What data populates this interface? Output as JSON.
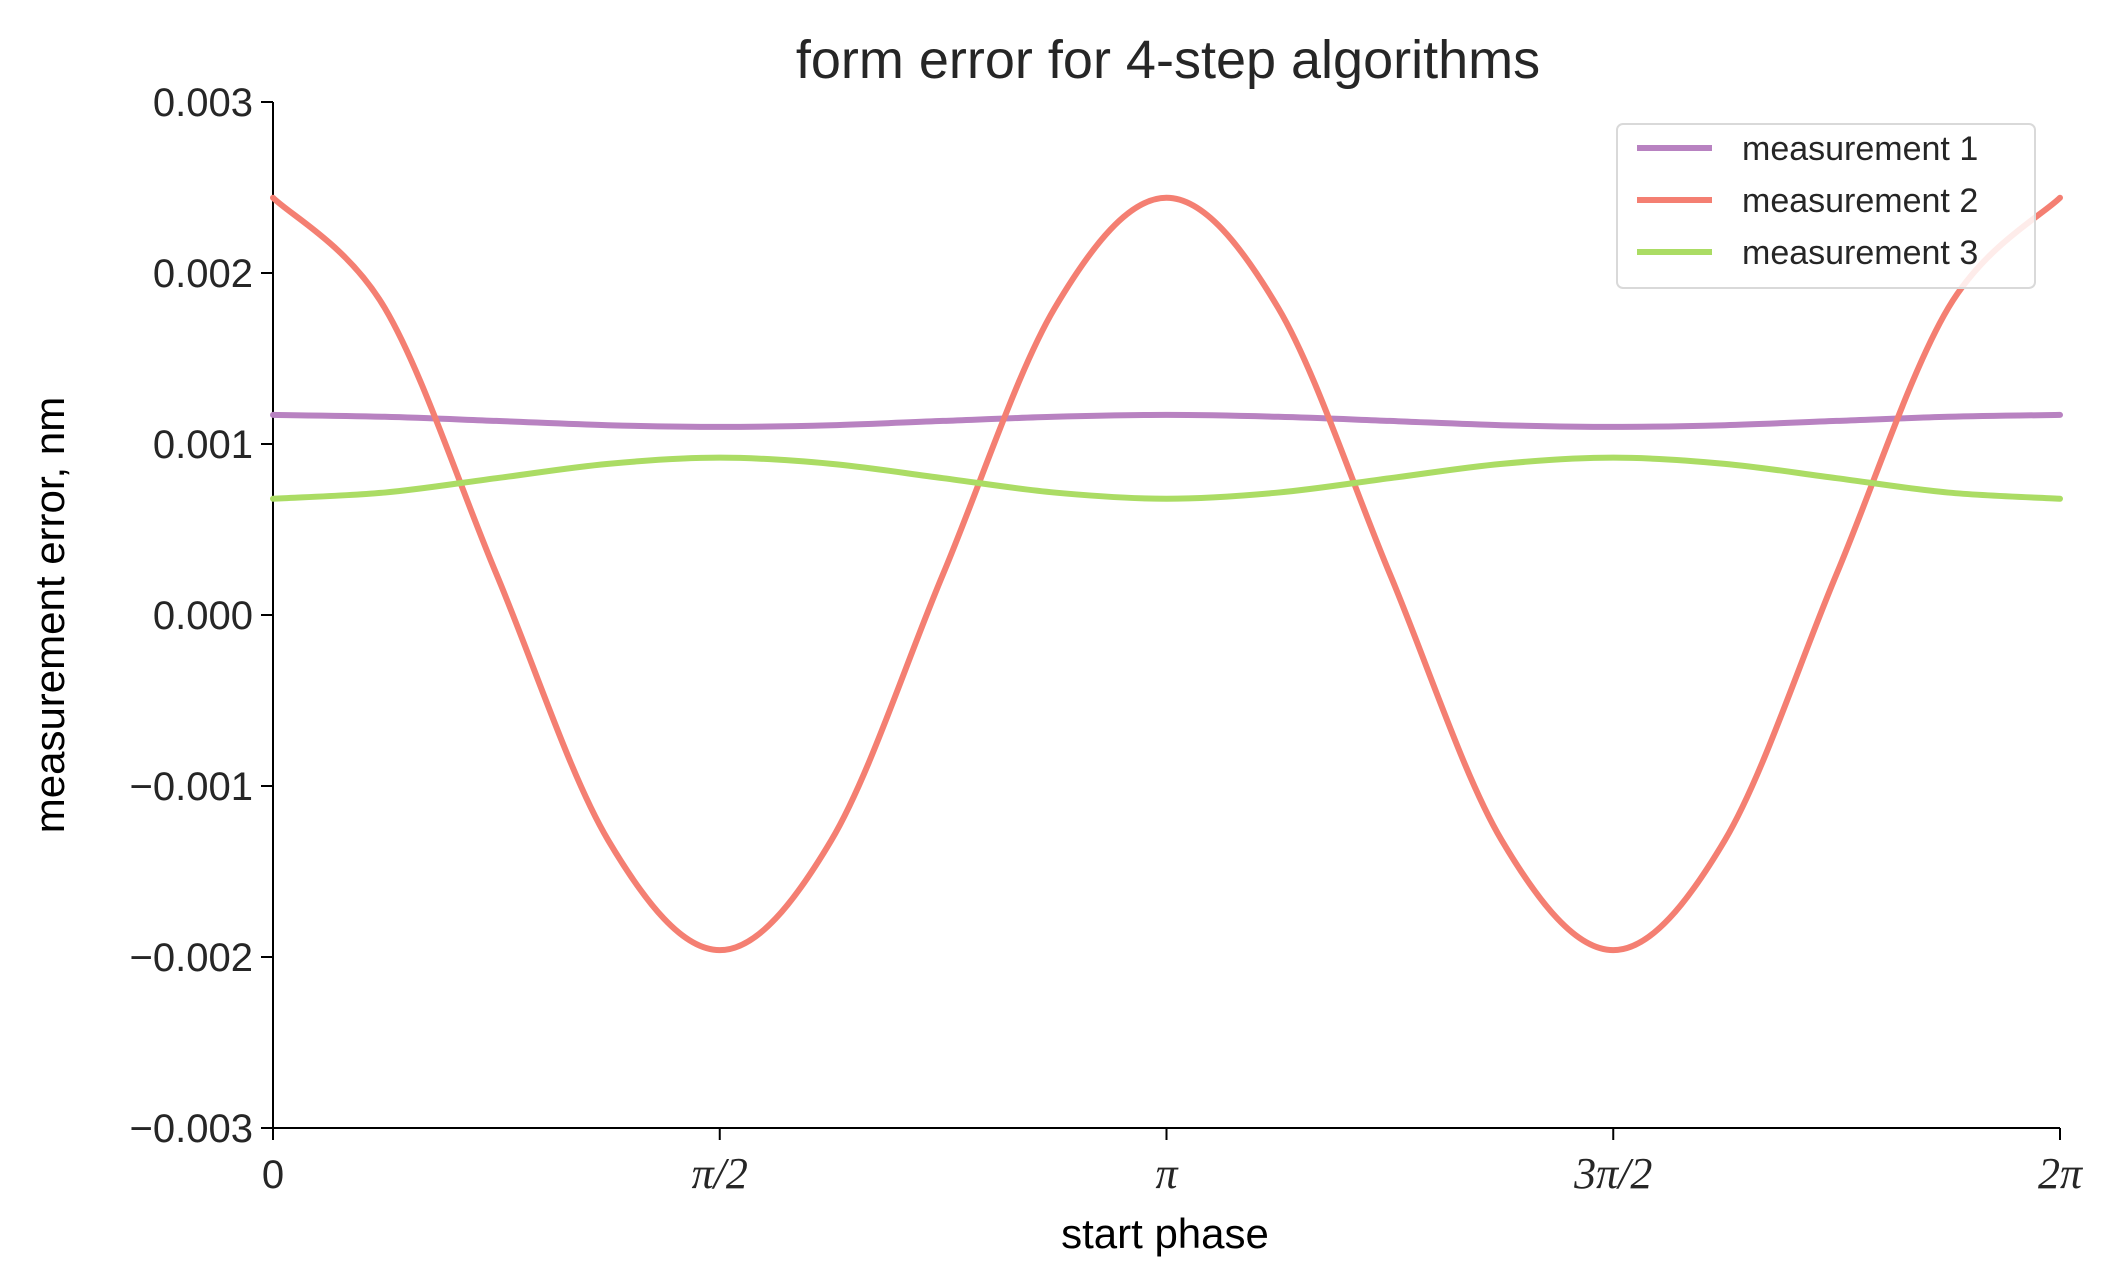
{
  "chart_data": {
    "type": "line",
    "title": "form error for 4-step algorithms",
    "xlabel": "start phase",
    "ylabel": "measurement error, nm",
    "xlim": [
      0,
      6.283185307
    ],
    "ylim": [
      -0.003,
      0.003
    ],
    "x_ticks": [
      {
        "value": 0,
        "label": "0"
      },
      {
        "value": 1.570796327,
        "label": "π/2"
      },
      {
        "value": 3.141592654,
        "label": "π"
      },
      {
        "value": 4.71238898,
        "label": "3π/2"
      },
      {
        "value": 6.283185307,
        "label": "2π"
      }
    ],
    "y_ticks": [
      {
        "value": 0.003,
        "label": "0.003"
      },
      {
        "value": 0.002,
        "label": "0.002"
      },
      {
        "value": 0.001,
        "label": "0.001"
      },
      {
        "value": 0.0,
        "label": "0.000"
      },
      {
        "value": -0.001,
        "label": "−0.001"
      },
      {
        "value": -0.002,
        "label": "−0.002"
      },
      {
        "value": -0.003,
        "label": "−0.003"
      }
    ],
    "grid": false,
    "legend_position": "top-right",
    "x": [
      0,
      0.3926991,
      0.7853982,
      1.1780972,
      1.5707963,
      1.9634954,
      2.3561945,
      2.7488936,
      3.1415927,
      3.5342917,
      3.9269908,
      4.3196899,
      4.712389,
      5.1050881,
      5.4977871,
      5.8904862,
      6.2831853
    ],
    "series": [
      {
        "name": "measurement 1",
        "color": "#b882c1",
        "values": [
          0.00117,
          0.001159,
          0.001135,
          0.00111,
          0.0011,
          0.00111,
          0.001135,
          0.001159,
          0.00117,
          0.001159,
          0.001135,
          0.00111,
          0.0011,
          0.00111,
          0.001135,
          0.001159,
          0.00117
        ]
      },
      {
        "name": "measurement 2",
        "color": "#f47f72",
        "values": [
          0.00244,
          0.001796,
          0.00024,
          -0.001316,
          -0.00196,
          -0.001316,
          0.00024,
          0.001796,
          0.00244,
          0.001796,
          0.00024,
          -0.001316,
          -0.00196,
          -0.001316,
          0.00024,
          0.001796,
          0.00244
        ]
      },
      {
        "name": "measurement 3",
        "color": "#abdc64",
        "values": [
          0.00068,
          0.000716,
          0.0008,
          0.000884,
          0.00092,
          0.000884,
          0.0008,
          0.000716,
          0.00068,
          0.000716,
          0.0008,
          0.000884,
          0.00092,
          0.000884,
          0.0008,
          0.000716,
          0.00068
        ]
      }
    ]
  }
}
